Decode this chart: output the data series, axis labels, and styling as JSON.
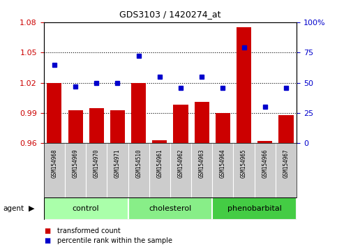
{
  "title": "GDS3103 / 1420274_at",
  "samples": [
    "GSM154968",
    "GSM154969",
    "GSM154970",
    "GSM154971",
    "GSM154510",
    "GSM154961",
    "GSM154962",
    "GSM154963",
    "GSM154964",
    "GSM154965",
    "GSM154966",
    "GSM154967"
  ],
  "transformed_count": [
    1.02,
    0.993,
    0.995,
    0.993,
    1.02,
    0.963,
    0.998,
    1.001,
    0.99,
    1.075,
    0.962,
    0.988
  ],
  "percentile_rank": [
    65,
    47,
    50,
    50,
    72,
    55,
    46,
    55,
    46,
    79,
    30,
    46
  ],
  "bar_baseline": 0.96,
  "ylim_left": [
    0.96,
    1.08
  ],
  "ylim_right": [
    0,
    100
  ],
  "yticks_left": [
    0.96,
    0.99,
    1.02,
    1.05,
    1.08
  ],
  "yticks_right": [
    0,
    25,
    50,
    75,
    100
  ],
  "bar_color": "#cc0000",
  "dot_color": "#0000cc",
  "groups": [
    {
      "label": "control",
      "start": 0,
      "end": 3,
      "color": "#aaffaa"
    },
    {
      "label": "cholesterol",
      "start": 4,
      "end": 7,
      "color": "#88ee88"
    },
    {
      "label": "phenobarbital",
      "start": 8,
      "end": 11,
      "color": "#44cc44"
    }
  ],
  "agent_label": "agent",
  "background_color": "#ffffff",
  "sample_area_color": "#cccccc",
  "left_axis_color": "#cc0000",
  "right_axis_color": "#0000cc"
}
